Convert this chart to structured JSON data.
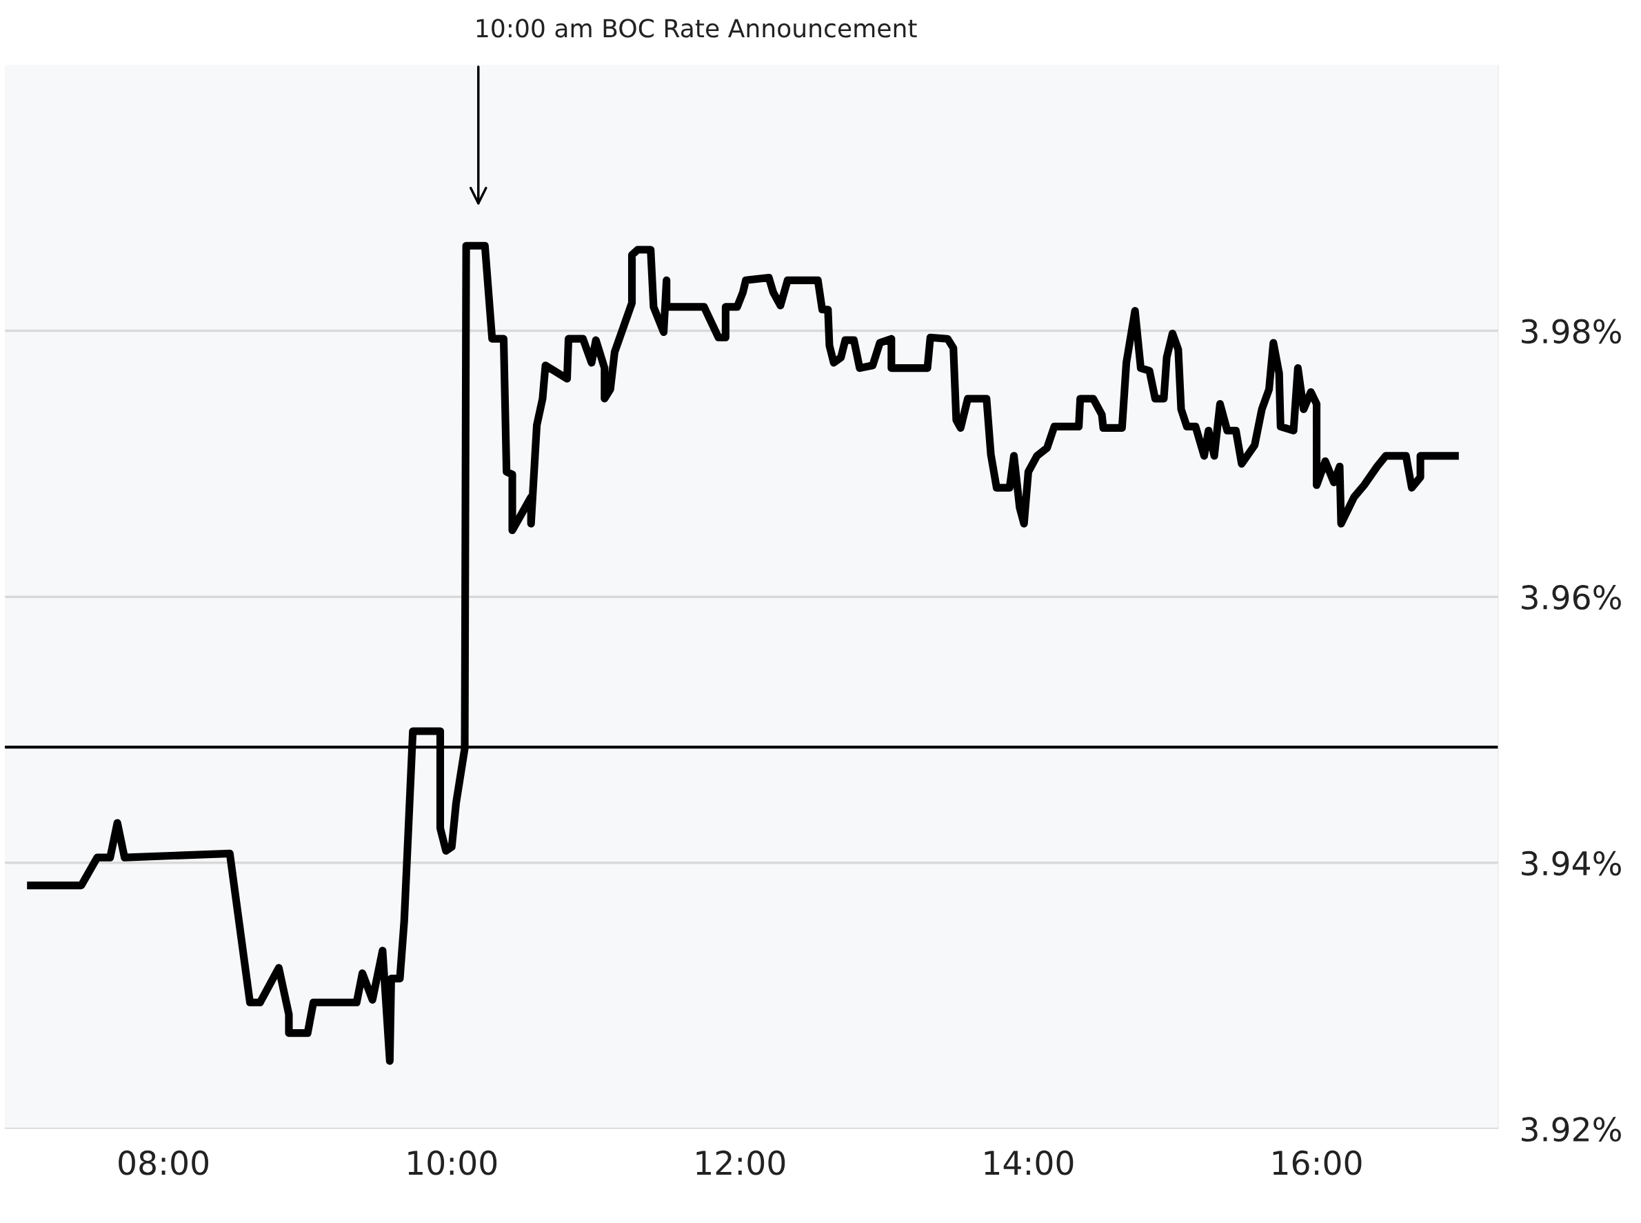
{
  "chart_data": {
    "type": "line",
    "annotations": [
      "10:00 am BOC Rate Announcement"
    ],
    "x": [
      7.08,
      7.43,
      7.54,
      7.63,
      7.68,
      7.73,
      8.46,
      8.6,
      8.67,
      8.8,
      8.87,
      8.87,
      9.0,
      9.04,
      9.34,
      9.38,
      9.45,
      9.52,
      9.57,
      9.58,
      9.64,
      9.67,
      9.73,
      9.92,
      9.92,
      9.96,
      10.0,
      10.03,
      10.09,
      10.1,
      10.23,
      10.28,
      10.36,
      10.38,
      10.42,
      10.42,
      10.55,
      10.55,
      10.59,
      10.63,
      10.65,
      10.8,
      10.81,
      10.91,
      10.97,
      11.0,
      11.06,
      11.06,
      11.1,
      11.13,
      11.25,
      11.25,
      11.29,
      11.38,
      11.4,
      11.47,
      11.49,
      11.49,
      11.75,
      11.85,
      11.9,
      11.9,
      11.98,
      12.02,
      12.04,
      12.2,
      12.23,
      12.28,
      12.33,
      12.54,
      12.57,
      12.61,
      12.62,
      12.65,
      12.7,
      12.73,
      12.79,
      12.83,
      12.92,
      12.97,
      13.05,
      13.05,
      13.3,
      13.32,
      13.44,
      13.48,
      13.5,
      13.53,
      13.58,
      13.71,
      13.74,
      13.78,
      13.87,
      13.9,
      13.94,
      13.97,
      14.0,
      14.06,
      14.13,
      14.18,
      14.35,
      14.36,
      14.45,
      14.51,
      14.52,
      14.65,
      14.68,
      14.74,
      14.78,
      14.84,
      14.88,
      14.94,
      14.96,
      15.0,
      15.04,
      15.06,
      15.1,
      15.16,
      15.22,
      15.25,
      15.29,
      15.33,
      15.38,
      15.44,
      15.48,
      15.57,
      15.62,
      15.67,
      15.7,
      15.74,
      15.75,
      15.84,
      15.87,
      15.91,
      15.96,
      16.0,
      16.0,
      16.06,
      16.12,
      16.16,
      16.17,
      16.26,
      16.33,
      16.42,
      16.48,
      16.62,
      16.66,
      16.72,
      16.72,
      16.96
    ],
    "series": [
      {
        "color": "#000000",
        "values": [
          3.9383,
          3.9383,
          3.9404,
          3.9404,
          3.943,
          3.9404,
          3.9407,
          3.9295,
          3.9295,
          3.9321,
          3.9286,
          3.9272,
          3.9272,
          3.9295,
          3.9295,
          3.9317,
          3.9297,
          3.9334,
          3.9251,
          3.9313,
          3.9313,
          3.9356,
          3.9499,
          3.9499,
          3.9426,
          3.9409,
          3.9412,
          3.9445,
          3.9486,
          3.9864,
          3.9864,
          3.9794,
          3.9794,
          3.9694,
          3.9692,
          3.965,
          3.9675,
          3.9655,
          3.9729,
          3.9749,
          3.9774,
          3.9764,
          3.9794,
          3.9794,
          3.9776,
          3.9793,
          3.9772,
          3.9749,
          3.9756,
          3.9784,
          3.9821,
          3.9857,
          3.9861,
          3.9861,
          3.9818,
          3.9799,
          3.9838,
          3.9818,
          3.9818,
          3.9795,
          3.9795,
          3.9818,
          3.9818,
          3.9829,
          3.9838,
          3.984,
          3.9829,
          3.9819,
          3.9838,
          3.9838,
          3.9816,
          3.9816,
          3.9789,
          3.9776,
          3.978,
          3.9793,
          3.9793,
          3.9772,
          3.9774,
          3.9791,
          3.9794,
          3.9772,
          3.9772,
          3.9795,
          3.9794,
          3.9787,
          3.9733,
          3.9727,
          3.9749,
          3.9749,
          3.9707,
          3.9682,
          3.9682,
          3.9706,
          3.9667,
          3.9655,
          3.9694,
          3.9706,
          3.9712,
          3.9728,
          3.9728,
          3.9749,
          3.9749,
          3.9737,
          3.9727,
          3.9727,
          3.9776,
          3.9815,
          3.9772,
          3.977,
          3.9749,
          3.9749,
          3.978,
          3.9798,
          3.9786,
          3.9741,
          3.9728,
          3.9728,
          3.9706,
          3.9725,
          3.9706,
          3.9745,
          3.9725,
          3.9725,
          3.97,
          3.9714,
          3.9741,
          3.9756,
          3.9791,
          3.9768,
          3.9728,
          3.9725,
          3.9772,
          3.9741,
          3.9754,
          3.9745,
          3.9684,
          3.9702,
          3.9686,
          3.9698,
          3.9655,
          3.9675,
          3.9684,
          3.9698,
          3.9706,
          3.9706,
          3.9682,
          3.969,
          3.9706,
          3.9706
        ]
      }
    ],
    "xlim": [
      6.9,
      17.26
    ],
    "xticks": [
      {
        "value": 8,
        "label": "08:00"
      },
      {
        "value": 10,
        "label": "10:00"
      },
      {
        "value": 12,
        "label": "12:00"
      },
      {
        "value": 14,
        "label": "14:00"
      },
      {
        "value": 16,
        "label": "16:00"
      }
    ],
    "ylim": [
      3.92,
      4.0
    ],
    "yticks": [
      {
        "value": 3.92,
        "label": "3.92%"
      },
      {
        "value": 3.94,
        "label": "3.94%"
      },
      {
        "value": 3.96,
        "label": "3.96%"
      },
      {
        "value": 3.98,
        "label": "3.98%"
      }
    ],
    "ref_lines": [
      {
        "axis": "y",
        "value": 3.9487,
        "color": "#000000"
      }
    ],
    "grid": "y",
    "marker": "none",
    "line_style": "solid",
    "legend": false
  }
}
